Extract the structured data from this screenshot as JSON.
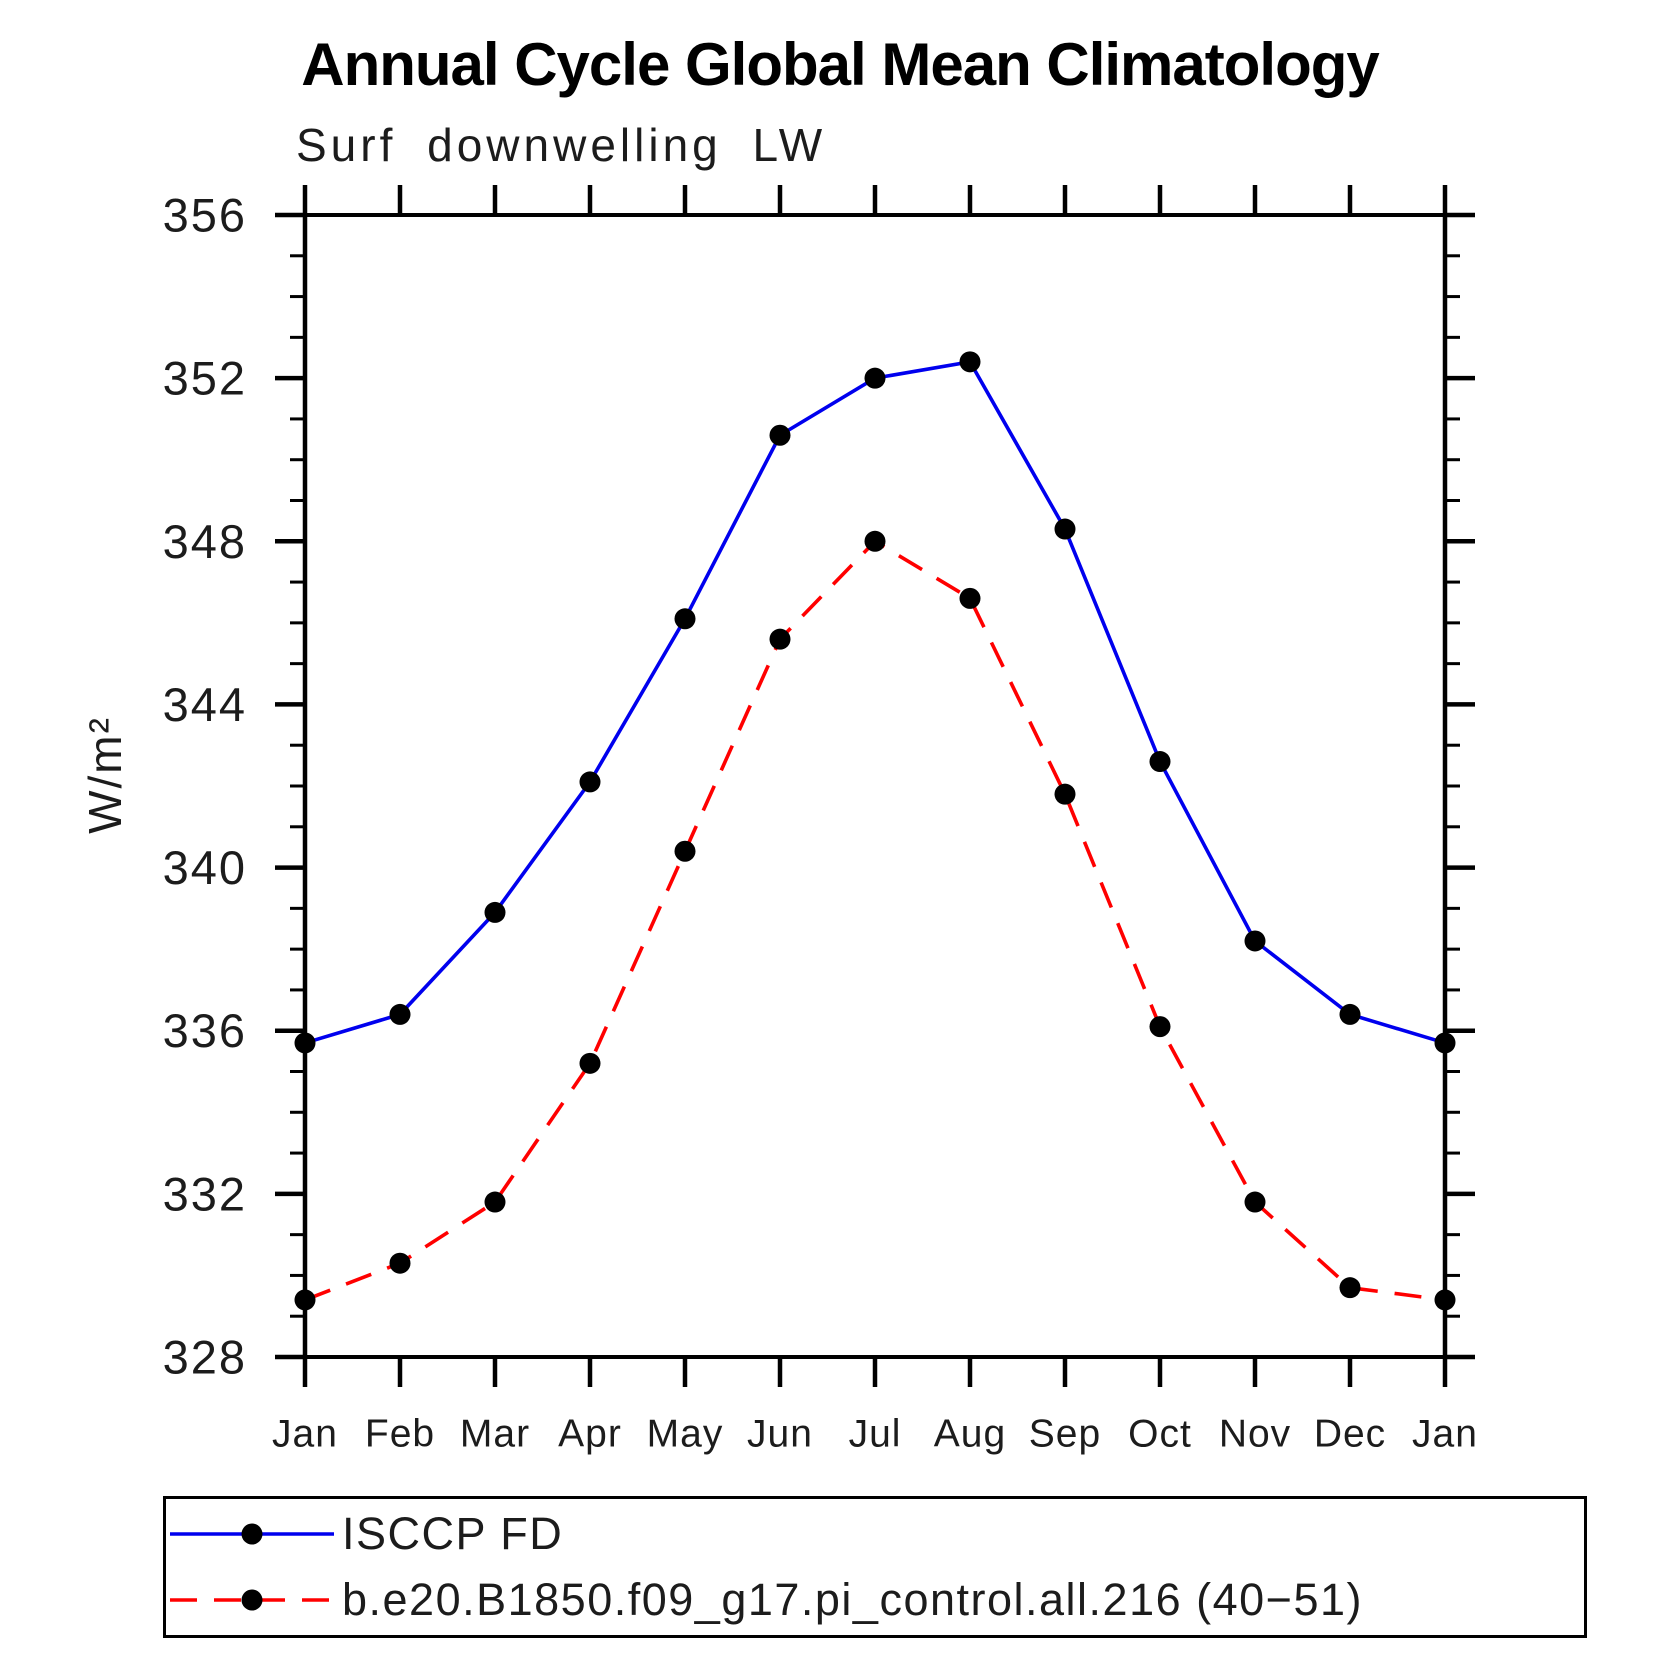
{
  "header": {
    "title": "Annual Cycle Global Mean Climatology",
    "subtitle": "Surf downwelling LW"
  },
  "chart_data": {
    "type": "line",
    "title": "Annual Cycle Global Mean Climatology",
    "subtitle": "Surf downwelling LW",
    "xlabel": "",
    "ylabel": "W/m²",
    "categories": [
      "Jan",
      "Feb",
      "Mar",
      "Apr",
      "May",
      "Jun",
      "Jul",
      "Aug",
      "Sep",
      "Oct",
      "Nov",
      "Dec",
      "Jan"
    ],
    "ylim": [
      328,
      356
    ],
    "ytick_step": 4,
    "yminor_step": 1,
    "grid": false,
    "legend_position": "bottom",
    "axis_color": "#000000",
    "series": [
      {
        "name": "ISCCP FD",
        "color": "#0000ee",
        "style": "solid",
        "marker": "circle",
        "marker_color": "#000000",
        "values": [
          335.7,
          336.4,
          338.9,
          342.1,
          346.1,
          350.6,
          352.0,
          352.4,
          348.3,
          342.6,
          338.2,
          336.4,
          335.7
        ]
      },
      {
        "name": "b.e20.B1850.f09_g17.pi_control.all.216 (40−51)",
        "color": "#ff0000",
        "style": "dashed",
        "marker": "circle",
        "marker_color": "#000000",
        "values": [
          329.4,
          330.3,
          331.8,
          335.2,
          340.4,
          345.6,
          348.0,
          346.6,
          341.8,
          336.1,
          331.8,
          329.7,
          329.4
        ]
      }
    ]
  }
}
